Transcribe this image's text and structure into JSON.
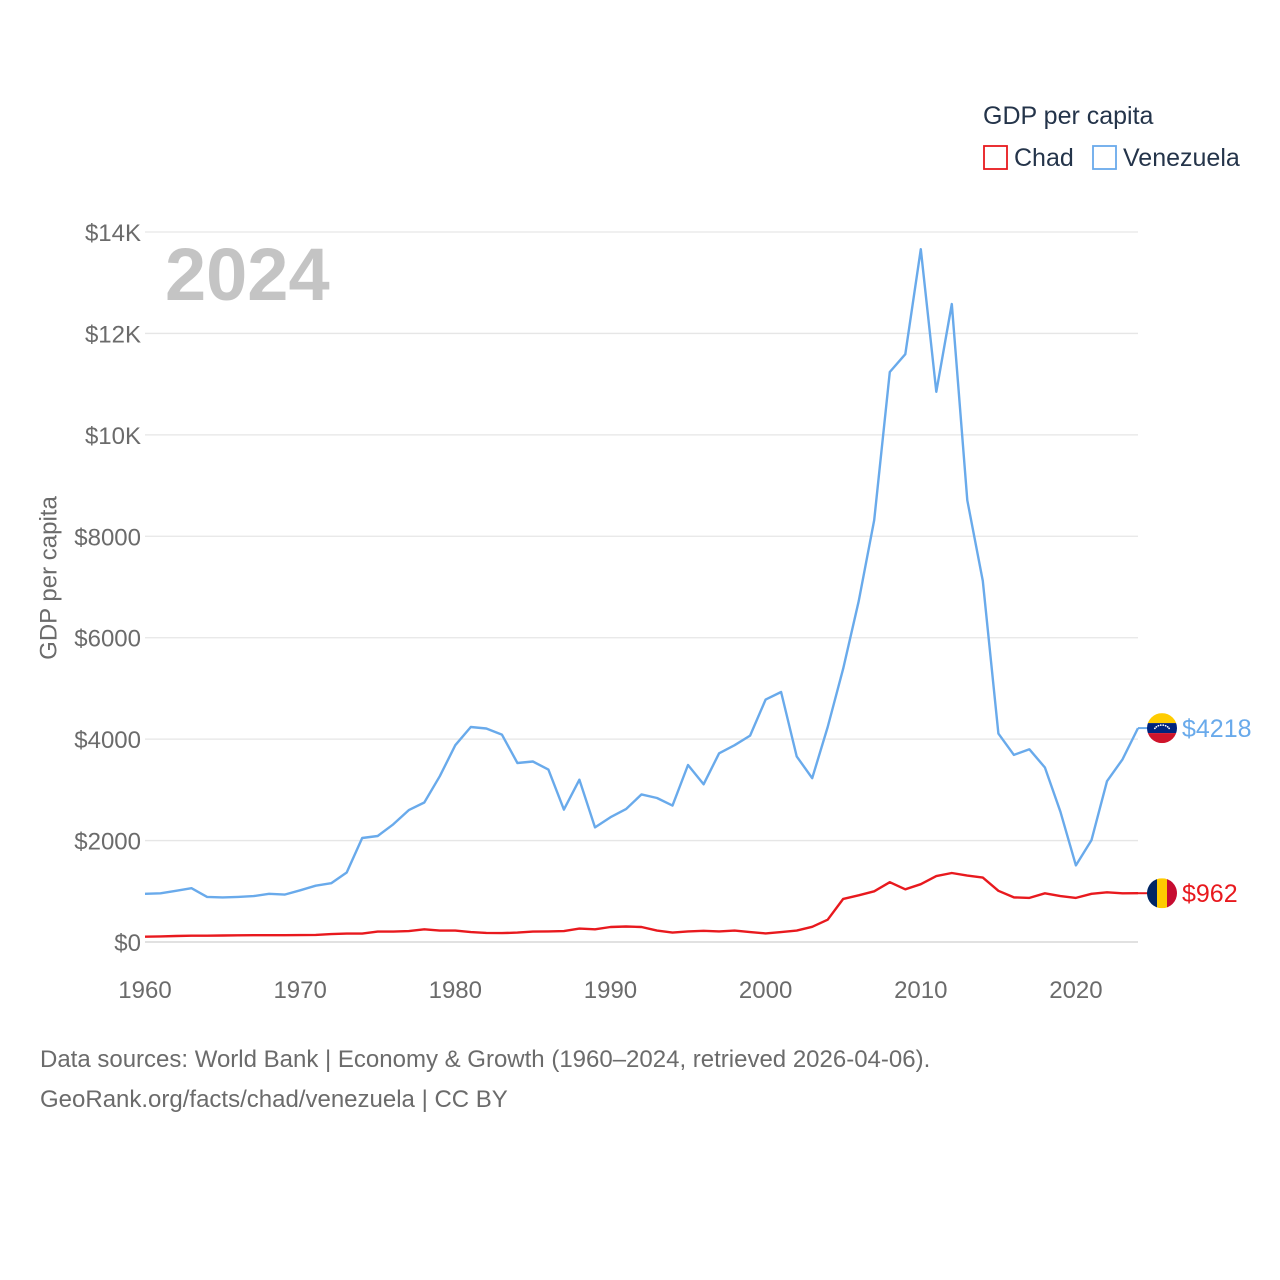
{
  "chart_data": {
    "type": "line",
    "title": "GDP per capita",
    "ylabel": "GDP per capita",
    "xlabel": "",
    "year_label": "2024",
    "xlim": [
      1960,
      2024
    ],
    "ylim": [
      0,
      14000
    ],
    "y_ticks": [
      0,
      2000,
      4000,
      6000,
      8000,
      10000,
      12000,
      14000
    ],
    "y_tick_labels": [
      "$0",
      "$2000",
      "$4000",
      "$6000",
      "$8000",
      "$10K",
      "$12K",
      "$14K"
    ],
    "x_ticks": [
      1960,
      1970,
      1980,
      1990,
      2000,
      2010,
      2020
    ],
    "x_tick_labels": [
      "1960",
      "1970",
      "1980",
      "1990",
      "2000",
      "2010",
      "2020"
    ],
    "legend": {
      "title": "GDP per capita",
      "position": "top-right"
    },
    "x": [
      1960,
      1961,
      1962,
      1963,
      1964,
      1965,
      1966,
      1967,
      1968,
      1969,
      1970,
      1971,
      1972,
      1973,
      1974,
      1975,
      1976,
      1977,
      1978,
      1979,
      1980,
      1981,
      1982,
      1983,
      1984,
      1985,
      1986,
      1987,
      1988,
      1989,
      1990,
      1991,
      1992,
      1993,
      1994,
      1995,
      1996,
      1997,
      1998,
      1999,
      2000,
      2001,
      2002,
      2003,
      2004,
      2005,
      2006,
      2007,
      2008,
      2009,
      2010,
      2011,
      2012,
      2013,
      2014,
      2015,
      2016,
      2017,
      2018,
      2019,
      2020,
      2021,
      2022,
      2023,
      2024
    ],
    "series": [
      {
        "name": "Chad",
        "color": "#e8191e",
        "end_label": "$962",
        "values": [
          105,
          110,
          118,
          125,
          125,
          128,
          132,
          135,
          135,
          135,
          137,
          140,
          155,
          165,
          165,
          205,
          205,
          215,
          250,
          225,
          225,
          195,
          180,
          175,
          185,
          205,
          210,
          215,
          265,
          250,
          295,
          305,
          295,
          225,
          185,
          210,
          220,
          210,
          225,
          195,
          170,
          195,
          225,
          300,
          440,
          850,
          920,
          1000,
          1180,
          1040,
          1140,
          1300,
          1360,
          1310,
          1270,
          1010,
          880,
          870,
          960,
          905,
          870,
          950,
          980,
          960,
          962
        ]
      },
      {
        "name": "Venezuela",
        "color": "#69aaeb",
        "end_label": "$4218",
        "values": [
          950,
          960,
          1010,
          1060,
          890,
          880,
          890,
          905,
          950,
          935,
          1020,
          1110,
          1160,
          1370,
          2050,
          2090,
          2320,
          2600,
          2750,
          3270,
          3880,
          4240,
          4210,
          4090,
          3530,
          3560,
          3400,
          2610,
          3200,
          2260,
          2460,
          2620,
          2910,
          2840,
          2690,
          3490,
          3110,
          3720,
          3880,
          4070,
          4780,
          4930,
          3660,
          3230,
          4240,
          5390,
          6720,
          8320,
          11240,
          11590,
          13660,
          10850,
          12580,
          8710,
          7120,
          4110,
          3690,
          3800,
          3440,
          2570,
          1510,
          2010,
          3170,
          3600,
          4218
        ]
      }
    ]
  },
  "source_text": "Data sources: World Bank | Economy & Growth (1960–2024, retrieved 2026-04-06).",
  "credit_text": "GeoRank.org/facts/chad/venezuela | CC BY"
}
